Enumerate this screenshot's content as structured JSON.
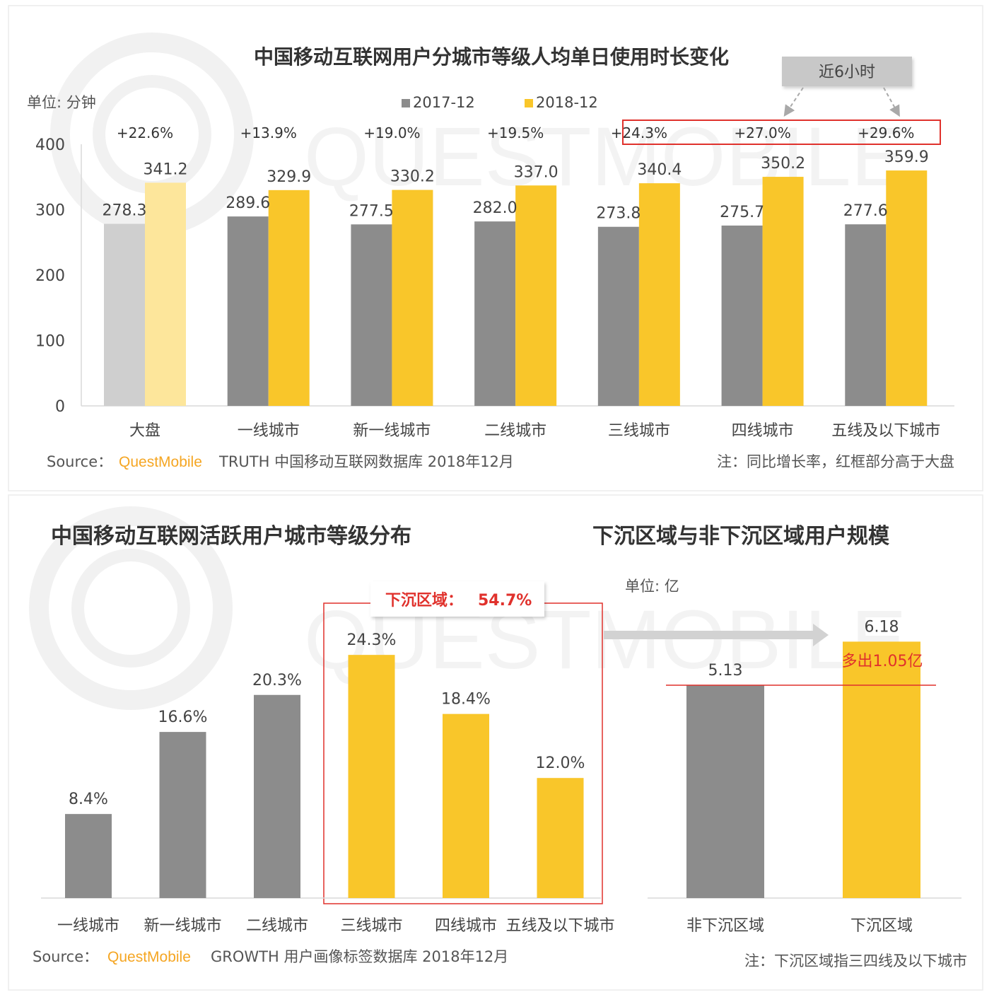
{
  "watermark": "QUESTMOBILE",
  "colors": {
    "gray": "#8c8c8c",
    "yellow": "#f9c62a",
    "gray_light": "#cfcfcf",
    "yellow_light": "#fde69b",
    "red": "#e0312c",
    "brand_orange": "#f5a623",
    "text": "#3a3a3a"
  },
  "top": {
    "title": "中国移动互联网用户分城市等级人均单日使用时长变化",
    "unit": "单位: 分钟",
    "callout": "近6小时",
    "source_prefix": "Source：",
    "source_brand": "QuestMobile",
    "source_rest": "TRUTH 中国移动互联网数据库 2018年12月",
    "note": "注：同比增长率，红框部分高于大盘"
  },
  "bottom_left": {
    "title": "中国移动互联网活跃用户城市等级分布",
    "box_label_prefix": "下沉区域：",
    "box_label_value": "54.7%",
    "source_prefix": "Source：",
    "source_brand": "QuestMobile",
    "source_rest": "GROWTH 用户画像标签数据库 2018年12月"
  },
  "bottom_right": {
    "title": "下沉区域与非下沉区域用户规模",
    "unit": "单位: 亿",
    "annotation": "多出1.05亿",
    "note": "注：下沉区域指三四线及以下城市"
  },
  "chart_data": [
    {
      "type": "bar",
      "title": "中国移动互联网用户分城市等级人均单日使用时长变化",
      "categories": [
        "大盘",
        "一线城市",
        "新一线城市",
        "二线城市",
        "三线城市",
        "四线城市",
        "五线及以下城市"
      ],
      "series": [
        {
          "name": "2017-12",
          "values": [
            278.3,
            289.6,
            277.5,
            282.0,
            273.8,
            275.7,
            277.6
          ]
        },
        {
          "name": "2018-12",
          "values": [
            341.2,
            329.9,
            330.2,
            337.0,
            340.4,
            350.2,
            359.9
          ]
        }
      ],
      "value_labels": {
        "2017-12": [
          "278.3",
          "289.6",
          "277.5",
          "282.0",
          "273.8",
          "275.7",
          "277.6"
        ],
        "2018-12": [
          "341.2",
          "329.9",
          "330.2",
          "337.0",
          "340.4",
          "350.2",
          "359.9"
        ]
      },
      "growth_labels": [
        "+22.6%",
        "+13.9%",
        "+19.0%",
        "+19.5%",
        "+24.3%",
        "+27.0%",
        "+29.6%"
      ],
      "highlighted_categories": [
        "三线城市",
        "四线城市",
        "五线及以下城市"
      ],
      "yticks": [
        "0",
        "100",
        "200",
        "300",
        "400"
      ],
      "ylim": [
        0,
        400
      ],
      "legend_position": "top-center",
      "grid": false
    },
    {
      "type": "bar",
      "title": "中国移动互联网活跃用户城市等级分布",
      "categories": [
        "一线城市",
        "新一线城市",
        "二线城市",
        "三线城市",
        "四线城市",
        "五线及以下城市"
      ],
      "values": [
        8.4,
        16.6,
        20.3,
        24.3,
        18.4,
        12.0
      ],
      "value_labels": [
        "8.4%",
        "16.6%",
        "20.3%",
        "24.3%",
        "18.4%",
        "12.0%"
      ],
      "highlighted_categories": [
        "三线城市",
        "四线城市",
        "五线及以下城市"
      ],
      "grid": false
    },
    {
      "type": "bar",
      "title": "下沉区域与非下沉区域用户规模",
      "categories": [
        "非下沉区域",
        "下沉区域"
      ],
      "values": [
        5.13,
        6.18
      ],
      "value_labels": [
        "5.13",
        "6.18"
      ],
      "grid": false
    }
  ]
}
